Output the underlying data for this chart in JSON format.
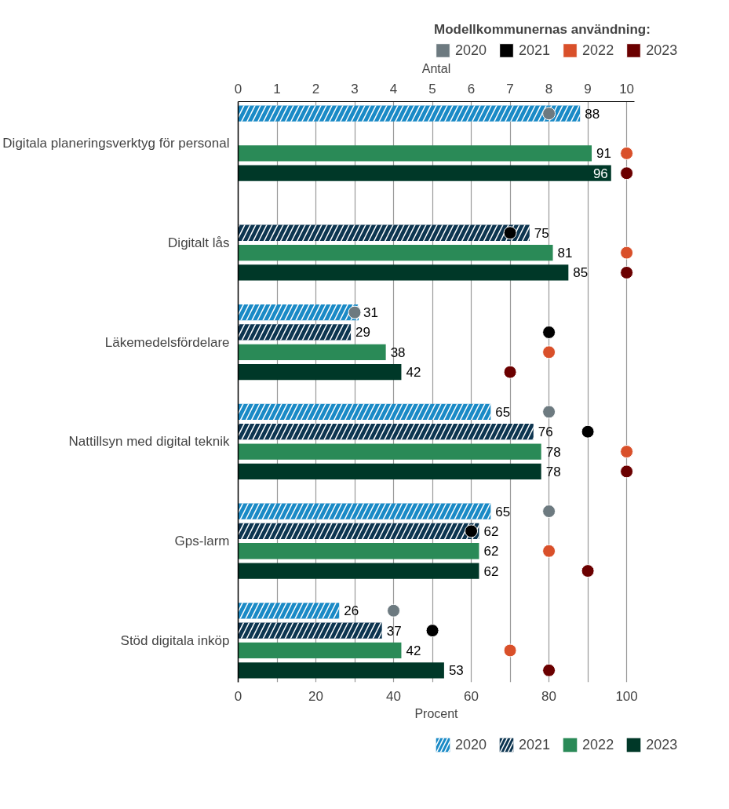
{
  "chart_data": {
    "type": "bar",
    "orientation": "horizontal",
    "categories": [
      "Digitala planeringsverktyg för personal",
      "Digitalt lås",
      "Läkemedelsfördelare",
      "Nattillsyn med digital teknik",
      "Gps-larm",
      "Stöd digitala inköp"
    ],
    "series": [
      {
        "name": "2020",
        "type": "bar",
        "color": "#1a8ac6",
        "values": [
          88,
          null,
          31,
          65,
          65,
          26
        ],
        "value_labels": [
          "88",
          null,
          "31",
          "65",
          "65",
          "26"
        ]
      },
      {
        "name": "2021",
        "type": "bar",
        "color": "#0d3550",
        "values": [
          null,
          75,
          29,
          76,
          62,
          37
        ],
        "value_labels": [
          null,
          "75",
          "29",
          "76",
          "62",
          "37"
        ]
      },
      {
        "name": "2022",
        "type": "bar",
        "color": "#2a8a57",
        "values": [
          91,
          81,
          38,
          78,
          62,
          42
        ],
        "value_labels": [
          "91",
          "81",
          "38",
          "78",
          "62",
          "42"
        ]
      },
      {
        "name": "2023",
        "type": "bar",
        "color": "#003828",
        "values": [
          96,
          85,
          42,
          78,
          62,
          53
        ],
        "value_labels": [
          "96",
          "85",
          "42",
          "78",
          "62",
          "53"
        ]
      },
      {
        "name": "2020",
        "type": "scatter",
        "axis": "x2",
        "color": "#6d7a80",
        "values": [
          8,
          null,
          3,
          8,
          8,
          4
        ]
      },
      {
        "name": "2021",
        "type": "scatter",
        "axis": "x2",
        "color": "#000000",
        "values": [
          null,
          7,
          8,
          9,
          6,
          5
        ]
      },
      {
        "name": "2022",
        "type": "scatter",
        "axis": "x2",
        "color": "#d9502a",
        "values": [
          10,
          10,
          8,
          10,
          8,
          7
        ]
      },
      {
        "name": "2023",
        "type": "scatter",
        "axis": "x2",
        "color": "#6b0000",
        "values": [
          10,
          10,
          7,
          10,
          9,
          8
        ]
      }
    ],
    "xlabel": "Procent",
    "x2label": "Antal",
    "legend_title": "Modellkommunernas användning:",
    "xlim": [
      0,
      102
    ],
    "xticks": [
      0,
      20,
      40,
      60,
      80,
      100
    ],
    "x2lim": [
      0,
      10.2
    ],
    "x2ticks": [
      0,
      1,
      2,
      3,
      4,
      5,
      6,
      7,
      8,
      9,
      10
    ],
    "grid": true,
    "legend": "bottom",
    "marker": "circle"
  }
}
